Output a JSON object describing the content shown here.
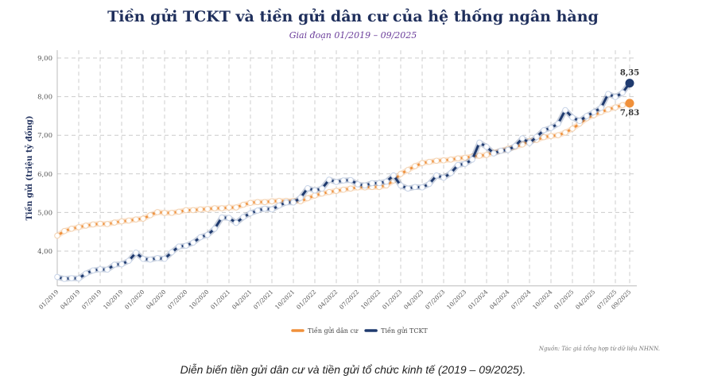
{
  "chart_data": {
    "type": "line",
    "title": "Tiền gửi TCKT và tiền gửi dân cư của hệ thống ngân hàng",
    "subtitle": "Giai đoạn 01/2019 – 09/2025",
    "ylabel": "Tiền gửi (triệu tỷ đồng)",
    "xlabel": "",
    "ylim": [
      3.1,
      9.2
    ],
    "yticks": [
      "4,00",
      "5,00",
      "6,00",
      "7,00",
      "8,00",
      "9,00"
    ],
    "ytick_values": [
      4,
      5,
      6,
      7,
      8,
      9
    ],
    "start_month": "01/2019",
    "xtick_labels": [
      "01/2019",
      "04/2019",
      "07/2019",
      "10/2019",
      "01/2020",
      "04/2020",
      "07/2020",
      "10/2020",
      "01/2021",
      "04/2021",
      "07/2021",
      "10/2021",
      "01/2022",
      "04/2022",
      "07/2022",
      "10/2022",
      "01/2023",
      "04/2023",
      "07/2023",
      "10/2023",
      "01/2024",
      "04/2024",
      "07/2024",
      "10/2024",
      "01/2025",
      "04/2025",
      "07/2025",
      "09/2025"
    ],
    "grid": true,
    "legend_position": "bottom",
    "series": [
      {
        "name": "Tiền gửi dân cư",
        "color": "#f0903a",
        "end_label": "7,83",
        "values": [
          4.4,
          4.52,
          4.58,
          4.62,
          4.66,
          4.69,
          4.71,
          4.7,
          4.74,
          4.77,
          4.79,
          4.82,
          4.84,
          4.93,
          5.01,
          4.99,
          4.99,
          5.02,
          5.06,
          5.06,
          5.08,
          5.09,
          5.11,
          5.11,
          5.13,
          5.13,
          5.2,
          5.25,
          5.27,
          5.27,
          5.29,
          5.3,
          5.3,
          5.3,
          5.29,
          5.37,
          5.44,
          5.49,
          5.53,
          5.56,
          5.59,
          5.62,
          5.65,
          5.65,
          5.66,
          5.66,
          5.7,
          5.83,
          6.0,
          6.1,
          6.2,
          6.28,
          6.31,
          6.34,
          6.35,
          6.37,
          6.4,
          6.42,
          6.45,
          6.47,
          6.49,
          6.55,
          6.6,
          6.65,
          6.7,
          6.76,
          6.85,
          6.88,
          6.95,
          6.98,
          7.0,
          7.07,
          7.17,
          7.3,
          7.44,
          7.52,
          7.6,
          7.67,
          7.72,
          7.78,
          7.83
        ]
      },
      {
        "name": "Tiền gửi TCKT",
        "color": "#1f3a6e",
        "end_label": "8,35",
        "values": [
          3.33,
          3.28,
          3.3,
          3.29,
          3.42,
          3.5,
          3.53,
          3.52,
          3.65,
          3.66,
          3.75,
          3.96,
          3.8,
          3.78,
          3.82,
          3.8,
          3.97,
          4.12,
          4.14,
          4.22,
          4.36,
          4.42,
          4.58,
          4.87,
          4.86,
          4.73,
          4.88,
          4.98,
          5.05,
          5.1,
          5.08,
          5.18,
          5.26,
          5.26,
          5.38,
          5.63,
          5.57,
          5.62,
          5.85,
          5.79,
          5.83,
          5.84,
          5.73,
          5.7,
          5.76,
          5.76,
          5.8,
          5.96,
          5.7,
          5.62,
          5.66,
          5.65,
          5.74,
          5.96,
          5.9,
          6.02,
          6.23,
          6.26,
          6.37,
          6.81,
          6.7,
          6.53,
          6.6,
          6.62,
          6.72,
          6.92,
          6.8,
          6.96,
          7.13,
          7.19,
          7.3,
          7.65,
          7.46,
          7.37,
          7.5,
          7.6,
          7.71,
          8.07,
          7.99,
          8.1,
          8.35
        ]
      }
    ],
    "source": "Nguồn: Tác giả tổng hợp từ dữ liệu NHNN."
  },
  "caption": "Diễn biến tiền gửi dân cư và tiền gửi tổ chức kinh tế (2019 – 09/2025)."
}
